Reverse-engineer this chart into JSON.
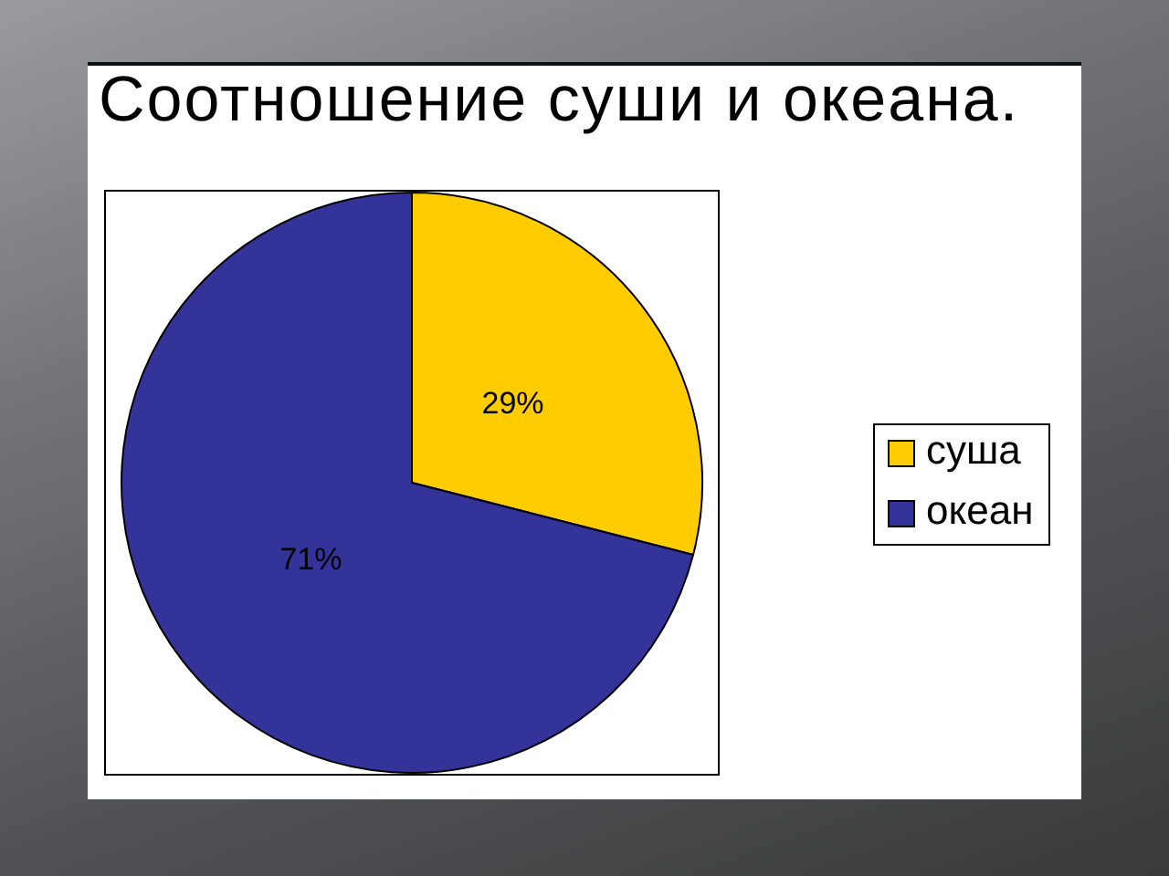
{
  "chart_data": {
    "type": "pie",
    "title": "Соотношение суши и океана.",
    "categories": [
      "суша",
      "океан"
    ],
    "values": [
      29,
      71
    ],
    "colors": [
      "#ffcc00",
      "#333399"
    ],
    "value_labels": [
      "29%",
      "71%"
    ],
    "legend": "right"
  }
}
